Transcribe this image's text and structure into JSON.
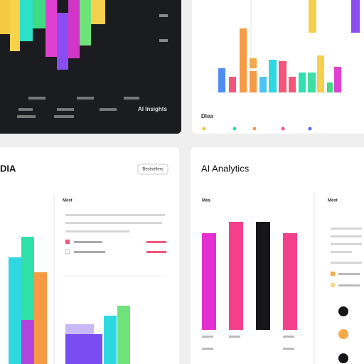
{
  "panels": [
    {
      "title": "AI Insights"
    },
    {
      "title": "Dlea"
    },
    {
      "title": "DIA",
      "button": "Bestsellers",
      "header": "Mest"
    },
    {
      "title": "AI Analytics",
      "header": "Mea",
      "side_header": "Mest"
    }
  ]
}
